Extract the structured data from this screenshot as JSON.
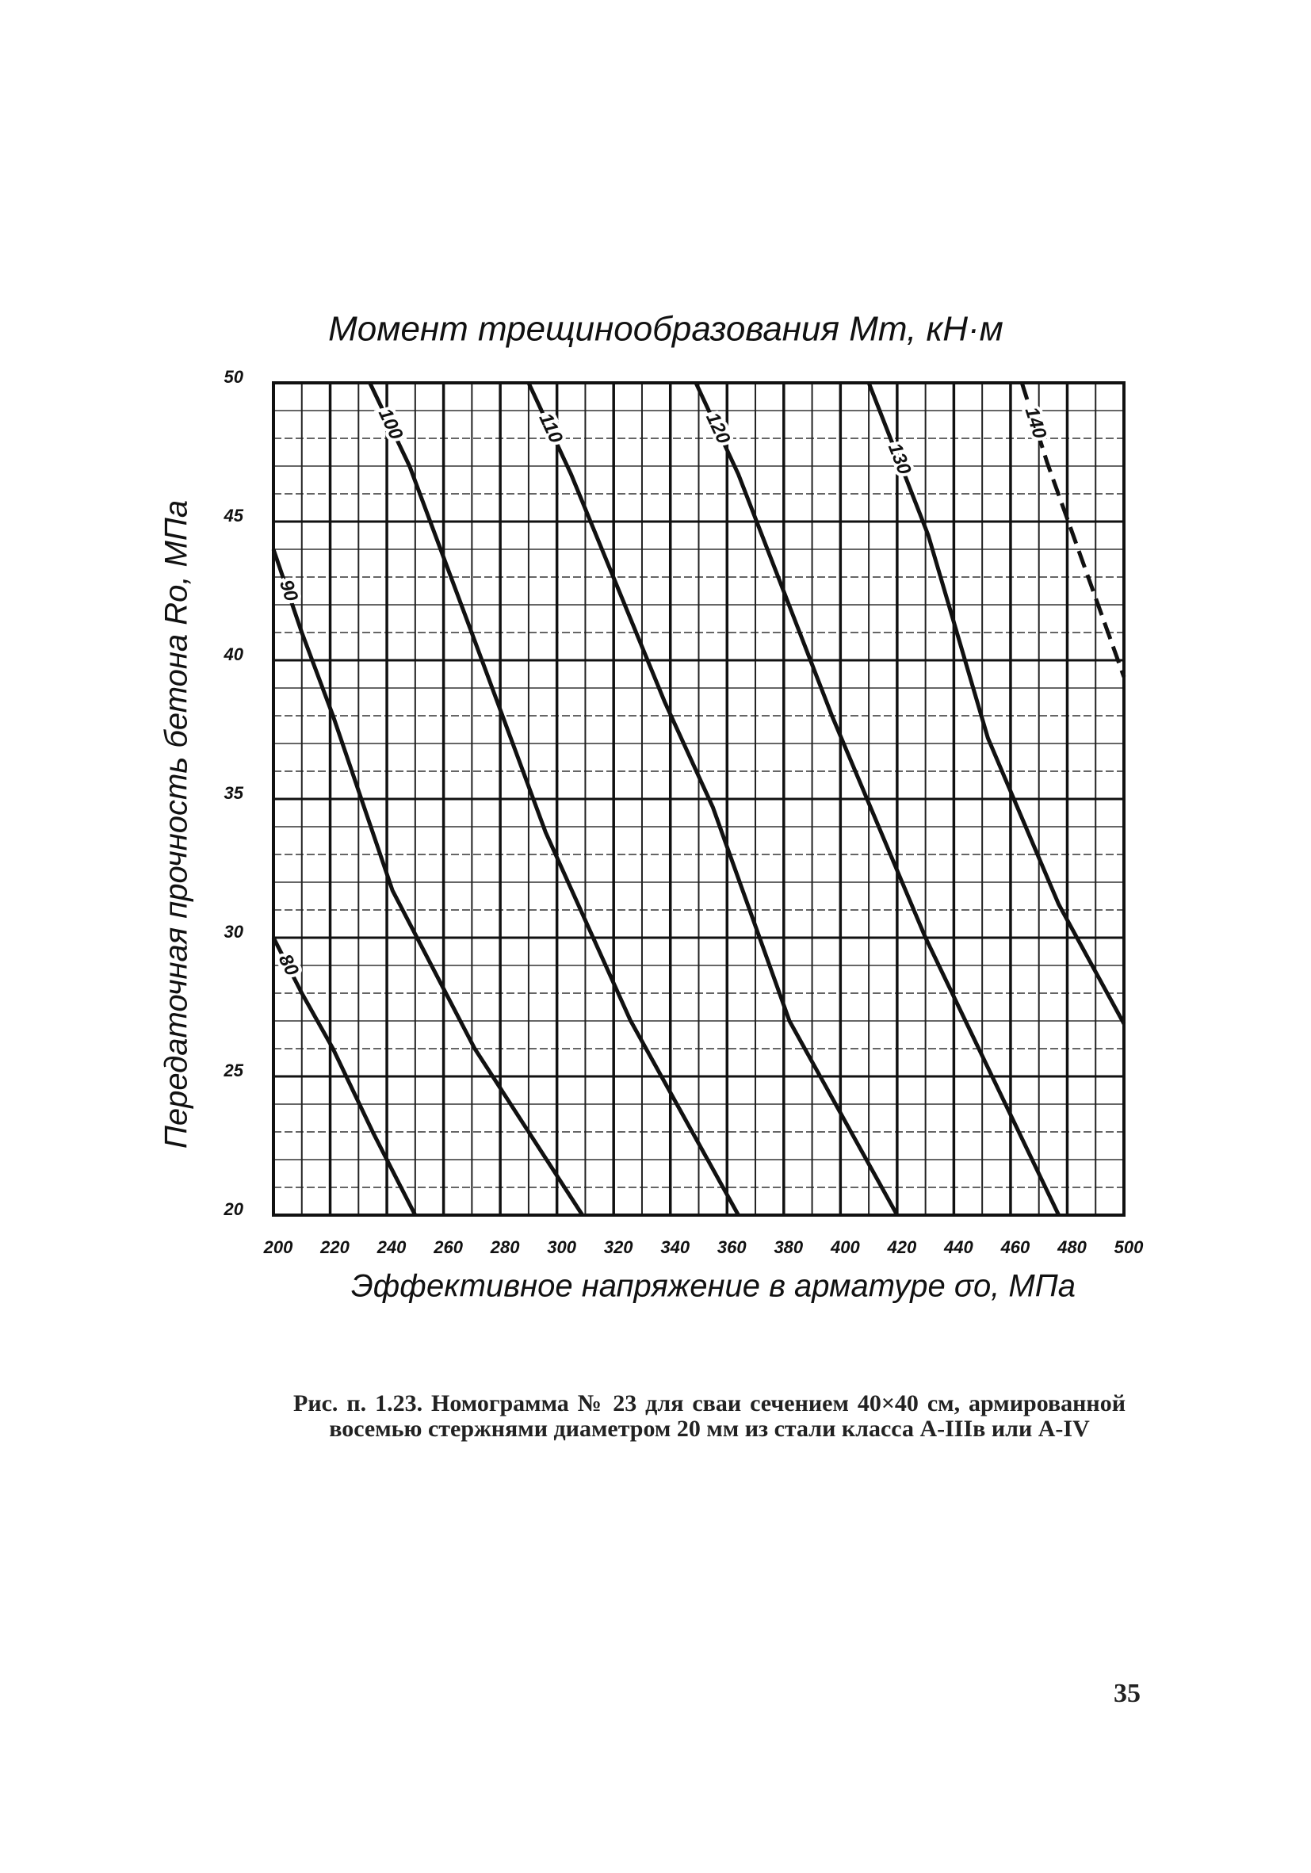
{
  "chart_data": {
    "type": "line",
    "title": "Момент трещинообразования Mт, кН·м",
    "x_label": "Эффективное напряжение в арматуре σо, МПа",
    "y_label": "Передаточная прочность бетона Rо, МПа",
    "xlim": [
      200,
      500
    ],
    "ylim": [
      20,
      50
    ],
    "xticks": [
      200,
      220,
      240,
      260,
      280,
      300,
      320,
      340,
      360,
      380,
      400,
      420,
      440,
      460,
      480,
      500
    ],
    "yticks": [
      20,
      25,
      30,
      35,
      40,
      45,
      50
    ],
    "grid": true,
    "series": [
      {
        "name": "80",
        "color": "#111111",
        "x": [
          200,
          210,
          221,
          235,
          250
        ],
        "values": [
          30,
          28,
          26,
          23,
          20
        ]
      },
      {
        "name": "90",
        "color": "#111111",
        "x": [
          200,
          210,
          221,
          242,
          271,
          309
        ],
        "values": [
          44,
          41,
          38,
          31.7,
          26,
          20
        ]
      },
      {
        "name": "100",
        "color": "#111111",
        "x": [
          234,
          248,
          271,
          296,
          326,
          364
        ],
        "values": [
          50,
          47,
          40.7,
          33.8,
          27,
          20
        ]
      },
      {
        "name": "110",
        "color": "#111111",
        "x": [
          290,
          305,
          338,
          355,
          382,
          420
        ],
        "values": [
          50,
          46.7,
          38.5,
          34.7,
          27,
          20
        ]
      },
      {
        "name": "120",
        "color": "#111111",
        "x": [
          349,
          364,
          397,
          430,
          477
        ],
        "values": [
          50,
          46.7,
          38,
          30,
          20
        ]
      },
      {
        "name": "130",
        "color": "#111111",
        "x": [
          410,
          431,
          452,
          477,
          500
        ],
        "values": [
          50,
          44.5,
          37.2,
          31.2,
          26.9
        ]
      },
      {
        "name": "140",
        "color": "#111111",
        "dashed": true,
        "x": [
          464,
          473,
          500
        ],
        "values": [
          50,
          47.1,
          39.4
        ]
      }
    ]
  },
  "caption": "Рис. п. 1.23. Номограмма № 23 для сваи сечением 40×40 см, армированной восемью стержнями диаметром 20 мм из стали класса А-IIIв или А-IV",
  "page_number": "35"
}
